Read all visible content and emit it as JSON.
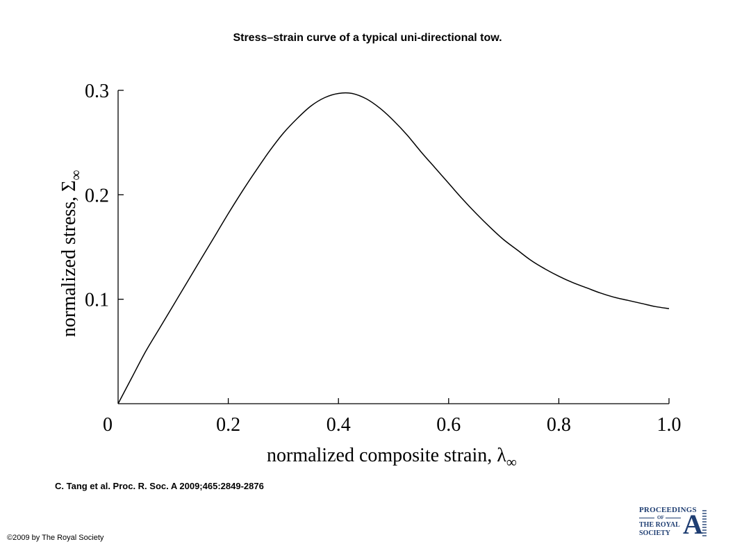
{
  "slide": {
    "title": "Stress–strain curve of a typical uni-directional tow.",
    "citation": "C. Tang et al. Proc. R. Soc. A 2009;465:2849-2876",
    "copyright": "©2009 by The Royal Society",
    "logo": {
      "line1": "PROCEEDINGS",
      "line2": "OF",
      "line3": "THE ROYAL",
      "line4": "SOCIETY",
      "letter": "A",
      "color": "#1f3e72"
    }
  },
  "chart_data": {
    "type": "line",
    "title": "",
    "xlabel": "normalized composite strain, λ",
    "xlabel_subscript": "∞",
    "ylabel": "normalized stress, Σ",
    "ylabel_subscript": "∞",
    "xlim": [
      0,
      1.0
    ],
    "ylim": [
      0,
      0.3
    ],
    "x_ticks": [
      0,
      0.2,
      0.4,
      0.6,
      0.8,
      1.0
    ],
    "x_tick_labels": [
      "0",
      "0.2",
      "0.4",
      "0.6",
      "0.8",
      "1.0"
    ],
    "y_ticks": [
      0.1,
      0.2,
      0.3
    ],
    "y_tick_labels": [
      "0.1",
      "0.2",
      "0.3"
    ],
    "grid": false,
    "legend": "none",
    "line_color": "#000000",
    "series": [
      {
        "x": [
          0,
          0.025,
          0.05,
          0.075,
          0.1,
          0.125,
          0.15,
          0.175,
          0.2,
          0.225,
          0.25,
          0.275,
          0.3,
          0.325,
          0.35,
          0.375,
          0.4,
          0.425,
          0.45,
          0.475,
          0.5,
          0.525,
          0.55,
          0.575,
          0.6,
          0.625,
          0.65,
          0.675,
          0.7,
          0.725,
          0.75,
          0.775,
          0.8,
          0.825,
          0.85,
          0.875,
          0.9,
          0.925,
          0.95,
          0.975,
          1.0
        ],
        "y": [
          0,
          0.025,
          0.05,
          0.072,
          0.094,
          0.116,
          0.138,
          0.16,
          0.182,
          0.203,
          0.223,
          0.242,
          0.259,
          0.273,
          0.285,
          0.293,
          0.297,
          0.297,
          0.292,
          0.283,
          0.271,
          0.257,
          0.241,
          0.226,
          0.211,
          0.196,
          0.182,
          0.169,
          0.157,
          0.147,
          0.137,
          0.129,
          0.122,
          0.116,
          0.111,
          0.106,
          0.102,
          0.099,
          0.096,
          0.093,
          0.091
        ]
      }
    ]
  }
}
